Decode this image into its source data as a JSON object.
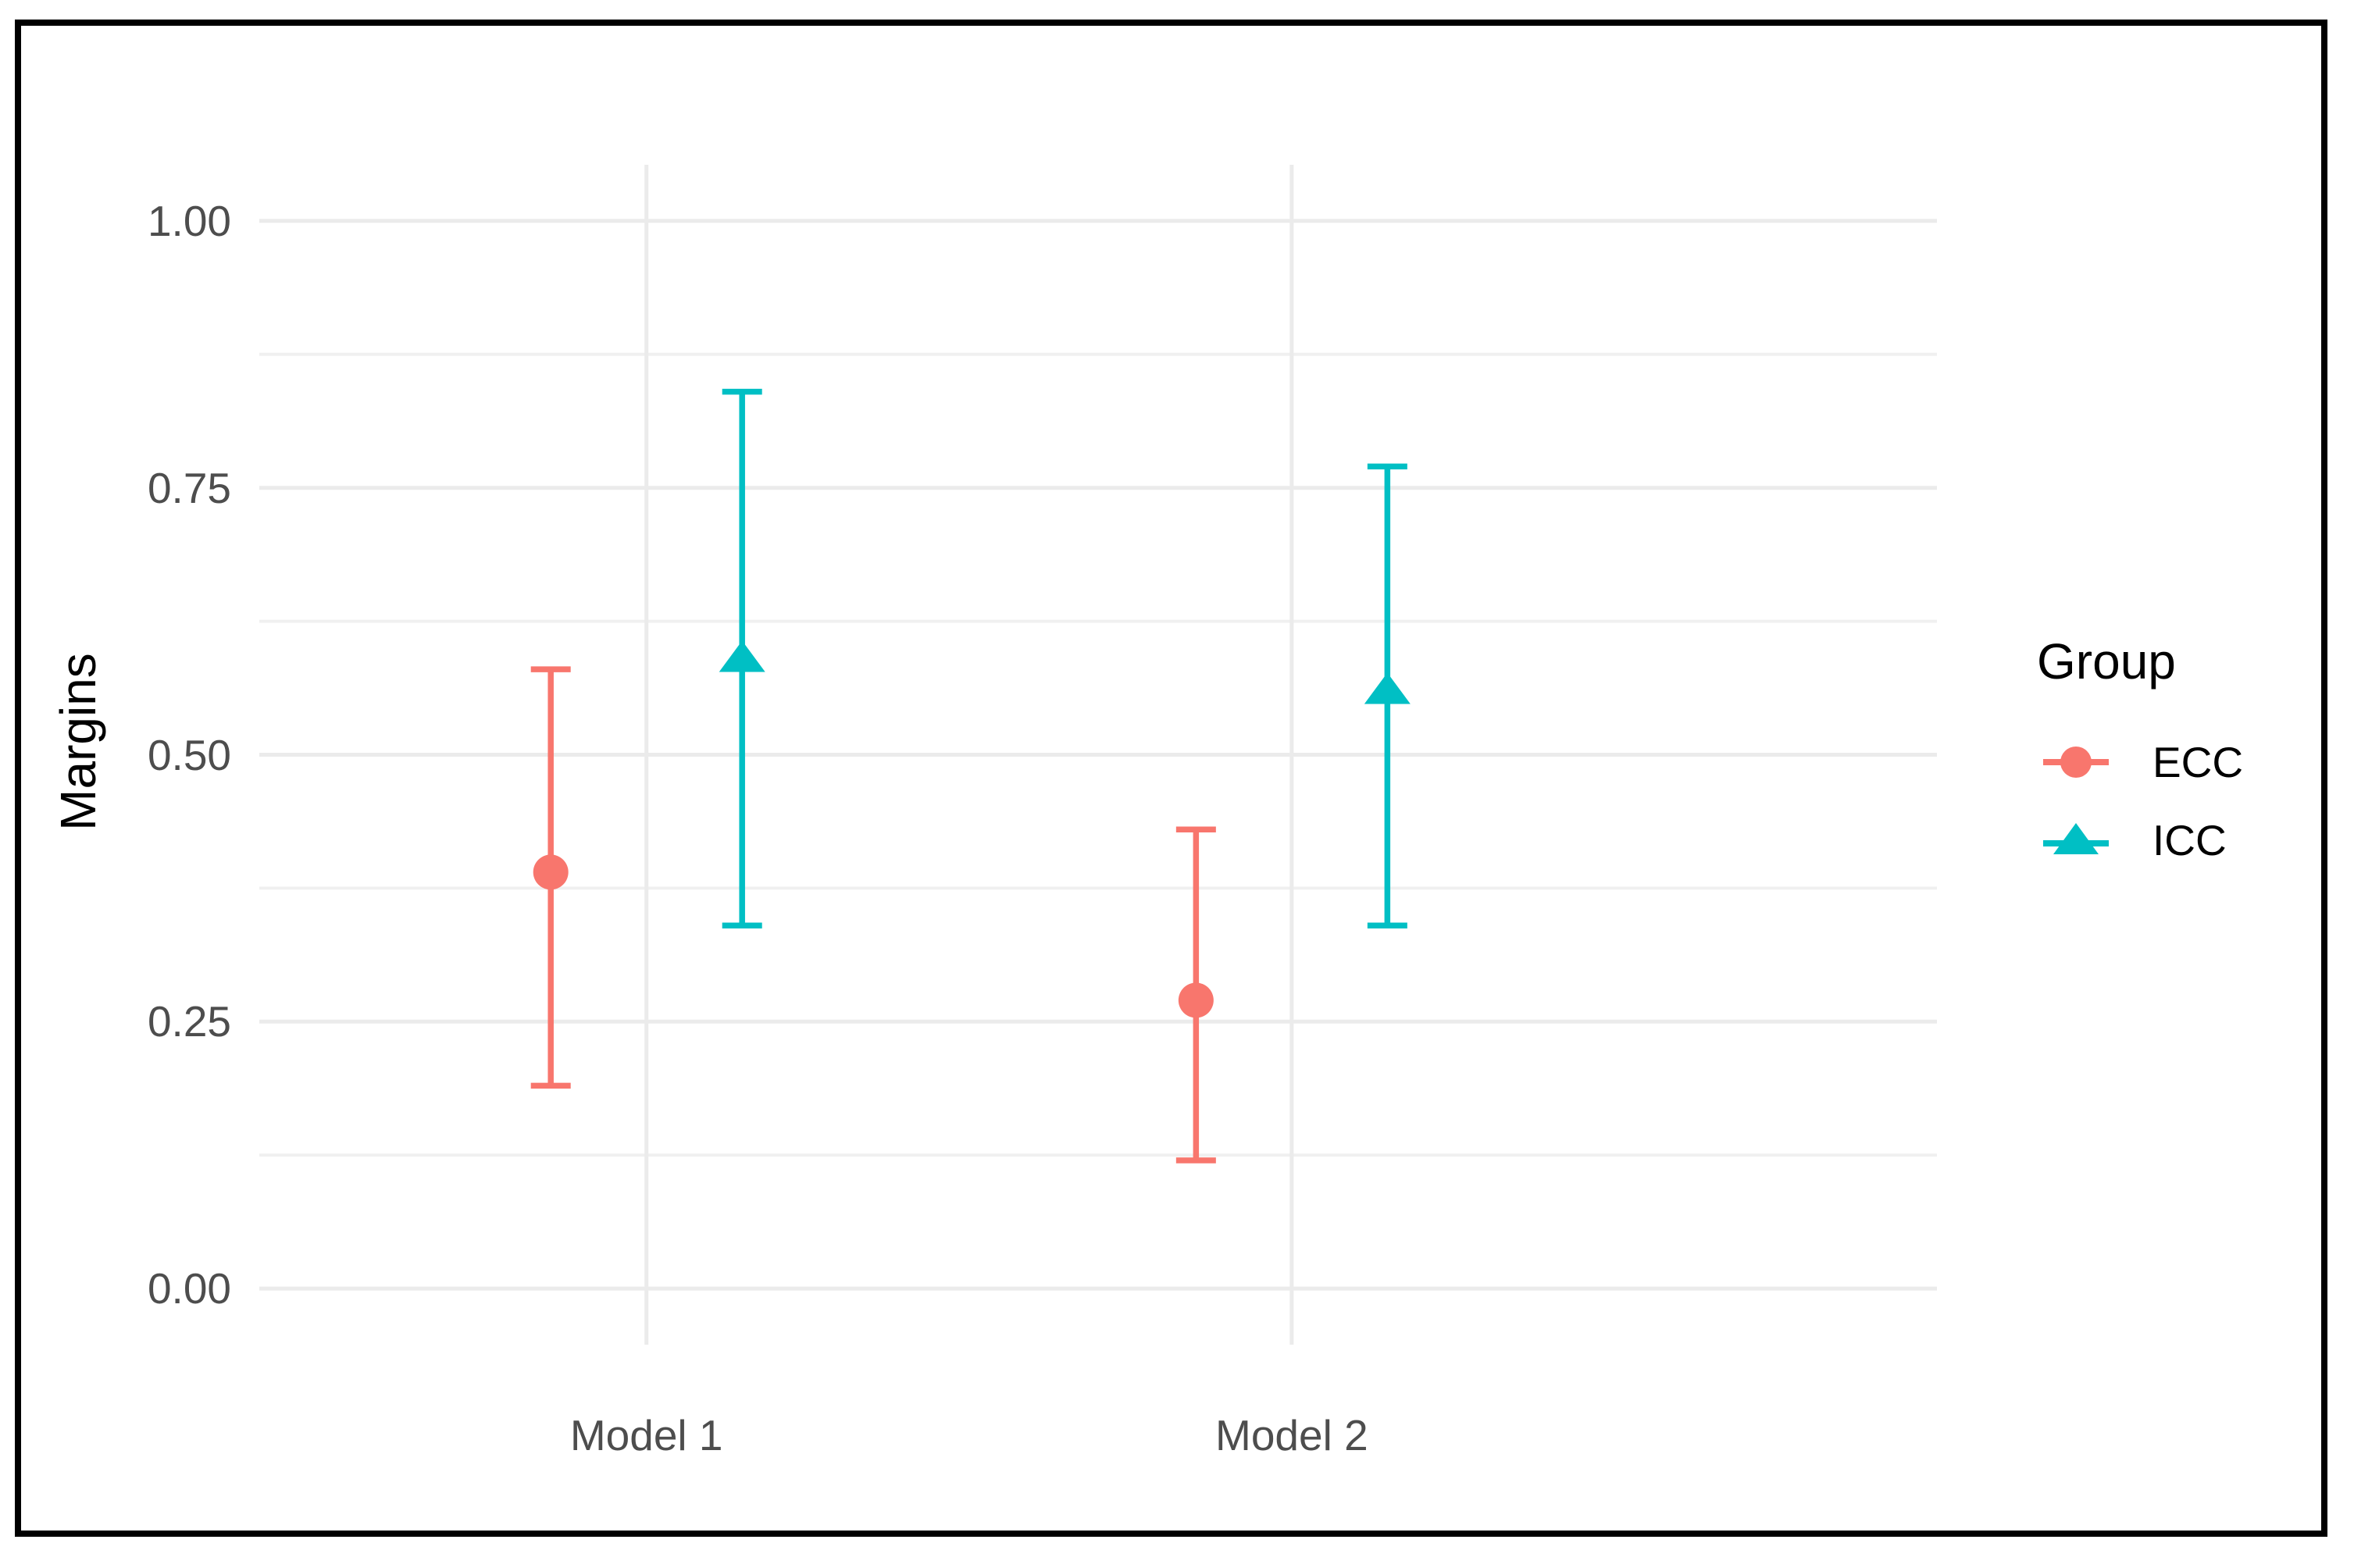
{
  "figure": {
    "background": "#ffffff",
    "border_color": "#000000",
    "grid_major_color": "#ebebeb",
    "grid_minor_color": "#f0f0f0",
    "tick_text_color": "#4d4d4d"
  },
  "axes": {
    "y_title": "Margins"
  },
  "legend": {
    "title": "Group",
    "items": [
      {
        "label": "ECC",
        "color": "#F8766D",
        "marker": "circle"
      },
      {
        "label": "ICC",
        "color": "#00BFC4",
        "marker": "triangle"
      }
    ]
  },
  "chart_data": {
    "type": "pointrange",
    "title": "",
    "xlabel": "",
    "ylabel": "Margins",
    "categories": [
      "Model 1",
      "Model 2"
    ],
    "series": [
      {
        "name": "ECC",
        "color": "#F8766D",
        "marker": "circle",
        "points": [
          {
            "x": "Model 1",
            "y": 0.39,
            "ymin": 0.19,
            "ymax": 0.58
          },
          {
            "x": "Model 2",
            "y": 0.27,
            "ymin": 0.12,
            "ymax": 0.43
          }
        ]
      },
      {
        "name": "ICC",
        "color": "#00BFC4",
        "marker": "triangle",
        "points": [
          {
            "x": "Model 1",
            "y": 0.59,
            "ymin": 0.34,
            "ymax": 0.84
          },
          {
            "x": "Model 2",
            "y": 0.56,
            "ymin": 0.34,
            "ymax": 0.77
          }
        ]
      }
    ],
    "ylim": [
      0,
      1
    ],
    "yticks": [
      {
        "value": 0.0,
        "label": "0.00"
      },
      {
        "value": 0.25,
        "label": "0.25"
      },
      {
        "value": 0.5,
        "label": "0.50"
      },
      {
        "value": 0.75,
        "label": "0.75"
      },
      {
        "value": 1.0,
        "label": "1.00"
      }
    ],
    "minor_yticks": [
      0.125,
      0.375,
      0.625,
      0.875
    ],
    "grid": true,
    "legend_position": "right"
  }
}
